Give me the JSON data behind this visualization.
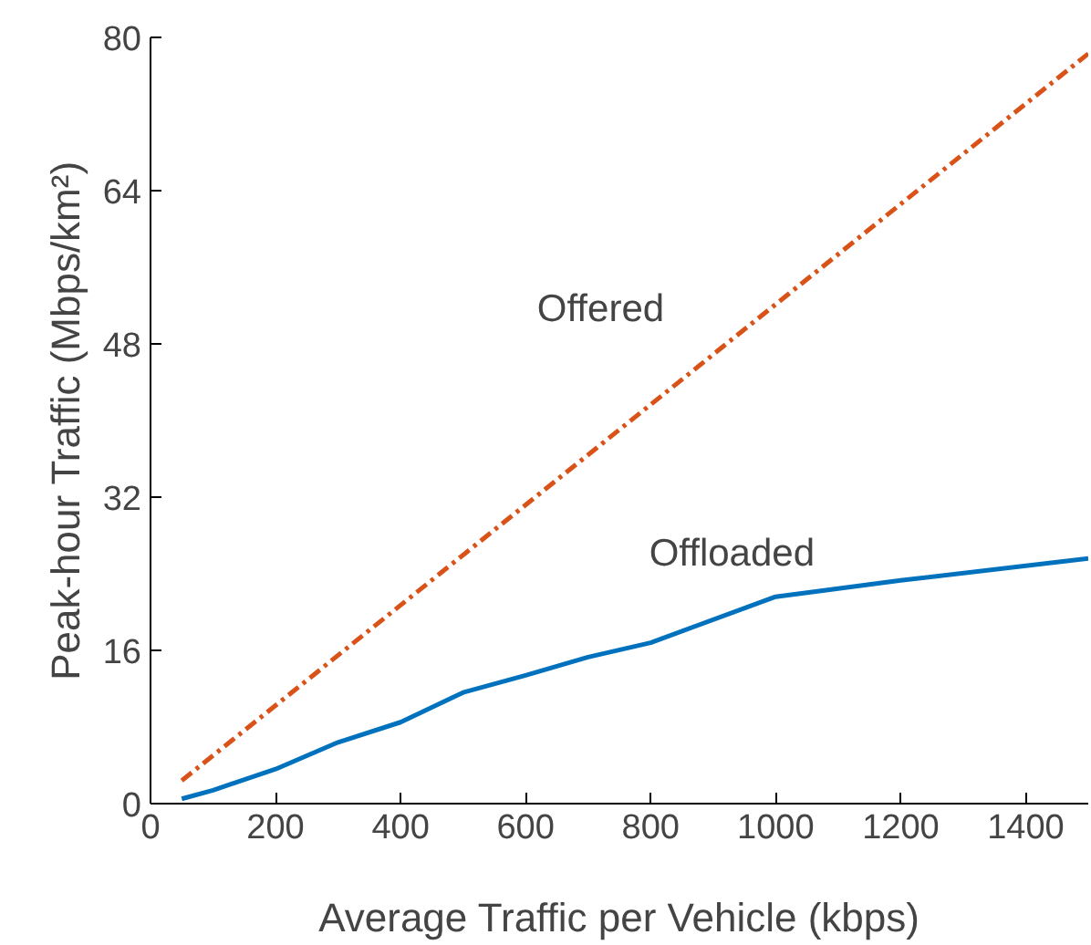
{
  "chart_data": {
    "type": "line",
    "xlabel": "Average Traffic per Vehicle (kbps)",
    "ylabel": "Peak-hour Traffic (Mbps/km²)",
    "xlim": [
      0,
      1500
    ],
    "ylim": [
      0,
      80
    ],
    "xticks": [
      0,
      200,
      400,
      600,
      800,
      1000,
      1200,
      1400
    ],
    "yticks": [
      0,
      16,
      32,
      48,
      64,
      80
    ],
    "grid": false,
    "legend": false,
    "series": [
      {
        "name": "Offered",
        "color": "#d95319",
        "line_style": "dashdot",
        "x": [
          50,
          1500
        ],
        "values": [
          2.4,
          78.3
        ]
      },
      {
        "name": "Offloaded",
        "color": "#0072bd",
        "line_style": "solid",
        "x": [
          50,
          100,
          200,
          300,
          400,
          500,
          600,
          700,
          800,
          1000,
          1200,
          1500
        ],
        "values": [
          0.5,
          1.4,
          3.6,
          6.4,
          8.5,
          11.6,
          13.4,
          15.3,
          16.8,
          21.6,
          23.3,
          25.6
        ]
      }
    ]
  }
}
